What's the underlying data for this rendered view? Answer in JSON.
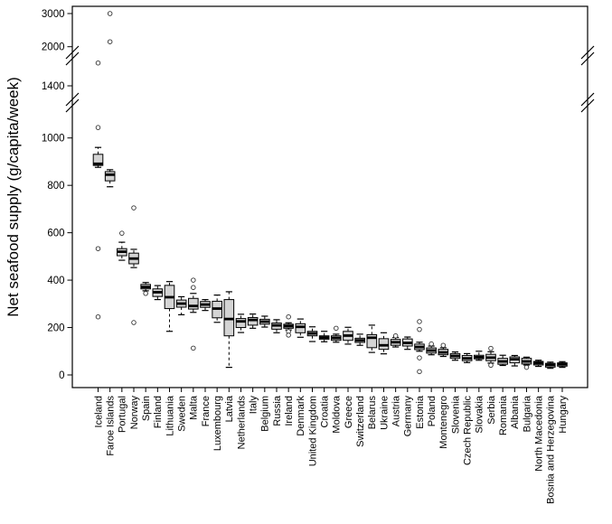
{
  "chart_data": {
    "type": "boxplot",
    "title": "",
    "xlabel": "",
    "ylabel": "Net seafood supply (g/capita/week)",
    "ylim": [
      0,
      3000
    ],
    "grid": false,
    "legend": null,
    "y_ticks": [
      0,
      200,
      400,
      600,
      800,
      1000,
      1400,
      2000,
      3000
    ],
    "axis_breaks": [
      {
        "between": [
          1000,
          1400
        ]
      },
      {
        "between": [
          1400,
          2000
        ]
      }
    ],
    "box_fill_color": "#d4d4d4",
    "stroke_color": "#000000",
    "categories": [
      "Iceland",
      "Faroe Islands",
      "Portugal",
      "Norway",
      "Spain",
      "Finland",
      "Lithuania",
      "Sweden",
      "Malta",
      "France",
      "Luxembourg",
      "Latvia",
      "Netherlands",
      "Italy",
      "Belgium",
      "Russia",
      "Ireland",
      "Denmark",
      "United Kingdom",
      "Croatia",
      "Moldova",
      "Greece",
      "Switzerland",
      "Belarus",
      "Ukraine",
      "Austria",
      "Germany",
      "Estonia",
      "Poland",
      "Montenegro",
      "Slovenia",
      "Czech Republic",
      "Slovakia",
      "Serbia",
      "Romania",
      "Albania",
      "Bulgaria",
      "North Macedonia",
      "Bosnia and Herzegovina",
      "Hungary"
    ],
    "boxes": [
      {
        "country": "Iceland",
        "low": 876,
        "q1": 884,
        "median": 891,
        "q3": 931,
        "high": 960,
        "outliers": [
          1750,
          1080,
          533,
          245
        ]
      },
      {
        "country": "Faroe Islands",
        "low": 794,
        "q1": 819,
        "median": 845,
        "q3": 858,
        "high": 866,
        "outliers": [
          3000,
          2150
        ]
      },
      {
        "country": "Portugal",
        "low": 484,
        "q1": 503,
        "median": 520,
        "q3": 533,
        "high": 560,
        "outliers": [
          598
        ]
      },
      {
        "country": "Norway",
        "low": 453,
        "q1": 469,
        "median": 491,
        "q3": 514,
        "high": 530,
        "outliers": [
          705,
          221
        ]
      },
      {
        "country": "Spain",
        "low": 355,
        "q1": 363,
        "median": 371,
        "q3": 382,
        "high": 390,
        "outliers": [
          344
        ]
      },
      {
        "country": "Finland",
        "low": 318,
        "q1": 331,
        "median": 349,
        "q3": 363,
        "high": 377,
        "outliers": []
      },
      {
        "country": "Lithuania",
        "low": 184,
        "q1": 280,
        "median": 328,
        "q3": 378,
        "high": 394,
        "outliers": []
      },
      {
        "country": "Sweden",
        "low": 254,
        "q1": 286,
        "median": 301,
        "q3": 316,
        "high": 330,
        "outliers": []
      },
      {
        "country": "Malta",
        "low": 264,
        "q1": 278,
        "median": 291,
        "q3": 323,
        "high": 344,
        "outliers": [
          400,
          369,
          113
        ]
      },
      {
        "country": "France",
        "low": 272,
        "q1": 285,
        "median": 297,
        "q3": 310,
        "high": 318,
        "outliers": []
      },
      {
        "country": "Luxembourg",
        "low": 222,
        "q1": 241,
        "median": 280,
        "q3": 311,
        "high": 337,
        "outliers": []
      },
      {
        "country": "Latvia",
        "low": 32,
        "q1": 165,
        "median": 236,
        "q3": 318,
        "high": 351,
        "outliers": []
      },
      {
        "country": "Netherlands",
        "low": 179,
        "q1": 200,
        "median": 226,
        "q3": 238,
        "high": 256,
        "outliers": []
      },
      {
        "country": "Italy",
        "low": 197,
        "q1": 210,
        "median": 232,
        "q3": 242,
        "high": 257,
        "outliers": []
      },
      {
        "country": "Belgium",
        "low": 202,
        "q1": 214,
        "median": 225,
        "q3": 235,
        "high": 248,
        "outliers": []
      },
      {
        "country": "Russia",
        "low": 178,
        "q1": 193,
        "median": 209,
        "q3": 219,
        "high": 233,
        "outliers": []
      },
      {
        "country": "Ireland",
        "low": 190,
        "q1": 197,
        "median": 206,
        "q3": 214,
        "high": 220,
        "outliers": [
          245,
          183,
          168
        ]
      },
      {
        "country": "Denmark",
        "low": 159,
        "q1": 178,
        "median": 203,
        "q3": 216,
        "high": 236,
        "outliers": []
      },
      {
        "country": "United Kingdom",
        "low": 141,
        "q1": 165,
        "median": 175,
        "q3": 184,
        "high": 203,
        "outliers": []
      },
      {
        "country": "Croatia",
        "low": 140,
        "q1": 150,
        "median": 158,
        "q3": 165,
        "high": 184,
        "outliers": []
      },
      {
        "country": "Moldova",
        "low": 138,
        "q1": 146,
        "median": 156,
        "q3": 165,
        "high": 172,
        "outliers": [
          197
        ]
      },
      {
        "country": "Greece",
        "low": 130,
        "q1": 146,
        "median": 166,
        "q3": 184,
        "high": 201,
        "outliers": []
      },
      {
        "country": "Switzerland",
        "low": 125,
        "q1": 137,
        "median": 146,
        "q3": 155,
        "high": 172,
        "outliers": []
      },
      {
        "country": "Belarus",
        "low": 95,
        "q1": 115,
        "median": 157,
        "q3": 170,
        "high": 210,
        "outliers": []
      },
      {
        "country": "Ukraine",
        "low": 89,
        "q1": 108,
        "median": 125,
        "q3": 153,
        "high": 178,
        "outliers": []
      },
      {
        "country": "Austria",
        "low": 118,
        "q1": 125,
        "median": 138,
        "q3": 150,
        "high": 158,
        "outliers": [
          165
        ]
      },
      {
        "country": "Germany",
        "low": 108,
        "q1": 122,
        "median": 135,
        "q3": 152,
        "high": 160,
        "outliers": []
      },
      {
        "country": "Estonia",
        "low": 100,
        "q1": 107,
        "median": 118,
        "q3": 130,
        "high": 138,
        "outliers": [
          225,
          192,
          72,
          14
        ]
      },
      {
        "country": "Poland",
        "low": 85,
        "q1": 92,
        "median": 103,
        "q3": 114,
        "high": 122,
        "outliers": [
          131
        ]
      },
      {
        "country": "Montenegro",
        "low": 78,
        "q1": 85,
        "median": 95,
        "q3": 108,
        "high": 115,
        "outliers": [
          125
        ]
      },
      {
        "country": "Slovenia",
        "low": 62,
        "q1": 70,
        "median": 80,
        "q3": 90,
        "high": 97,
        "outliers": []
      },
      {
        "country": "Czech Republic",
        "low": 52,
        "q1": 60,
        "median": 70,
        "q3": 82,
        "high": 90,
        "outliers": []
      },
      {
        "country": "Slovakia",
        "low": 62,
        "q1": 68,
        "median": 75,
        "q3": 83,
        "high": 100,
        "outliers": []
      },
      {
        "country": "Serbia",
        "low": 50,
        "q1": 60,
        "median": 73,
        "q3": 87,
        "high": 98,
        "outliers": [
          112,
          41
        ]
      },
      {
        "country": "Romania",
        "low": 40,
        "q1": 45,
        "median": 57,
        "q3": 70,
        "high": 83,
        "outliers": []
      },
      {
        "country": "Albania",
        "low": 38,
        "q1": 51,
        "median": 66,
        "q3": 76,
        "high": 82,
        "outliers": []
      },
      {
        "country": "Bulgaria",
        "low": 42,
        "q1": 46,
        "median": 57,
        "q3": 70,
        "high": 75,
        "outliers": [
          32
        ]
      },
      {
        "country": "North Macedonia",
        "low": 36,
        "q1": 42,
        "median": 50,
        "q3": 57,
        "high": 62,
        "outliers": []
      },
      {
        "country": "Bosnia and Herzegovina",
        "low": 28,
        "q1": 33,
        "median": 42,
        "q3": 49,
        "high": 54,
        "outliers": []
      },
      {
        "country": "Hungary",
        "low": 32,
        "q1": 37,
        "median": 45,
        "q3": 51,
        "high": 56,
        "outliers": []
      }
    ]
  }
}
